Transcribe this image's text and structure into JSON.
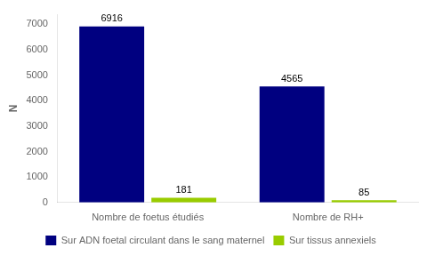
{
  "chart_data": {
    "type": "bar",
    "categories": [
      "Nombre de foetus étudiés",
      "Nombre de RH+"
    ],
    "series": [
      {
        "name": "Sur ADN foetal circulant dans le sang maternel",
        "color": "#000080",
        "values": [
          6916,
          4565
        ]
      },
      {
        "name": "Sur tissus annexiels",
        "color": "#99CC00",
        "values": [
          181,
          85
        ]
      }
    ],
    "ylabel": "N",
    "ylim": [
      0,
      7400
    ],
    "yticks": [
      0,
      1000,
      2000,
      3000,
      4000,
      5000,
      6000,
      7000
    ],
    "grid": false,
    "legend": "bottom",
    "data_labels": true
  }
}
